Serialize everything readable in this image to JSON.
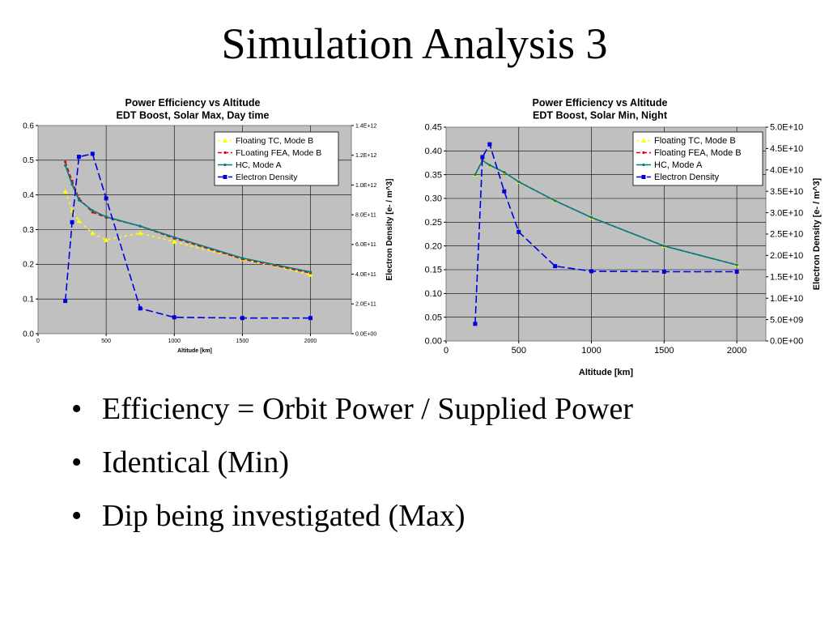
{
  "slide": {
    "title": "Simulation Analysis 3",
    "bullet_char": "•",
    "bullets": [
      "Efficiency = Orbit Power / Supplied Power",
      "Identical (Min)",
      "Dip being investigated (Max)"
    ]
  },
  "chart_data": [
    {
      "type": "line",
      "title": "Power Efficiency vs Altitude",
      "subtitle": "EDT Boost, Solar Max, Day time",
      "xlabel": "Altitude [km]",
      "ylabel": "",
      "y2label": "Electron Density [e- / m^3]",
      "xlim": [
        0,
        2300
      ],
      "ylim": [
        0,
        0.6
      ],
      "y2lim": [
        0,
        1400000000000.0
      ],
      "xticks": [
        0,
        500,
        1000,
        1500,
        2000
      ],
      "xtick_labels": [
        "0",
        "500",
        "1000",
        "1500",
        "2000"
      ],
      "yticks": [
        0,
        0.1,
        0.2,
        0.3,
        0.4,
        0.5,
        0.6
      ],
      "ytick_labels": [
        "0.0",
        "0.1",
        "0.2",
        "0.3",
        "0.4",
        "0.5",
        "0.6"
      ],
      "y2ticks": [
        0,
        200000000000.0,
        400000000000.0,
        600000000000.0,
        800000000000.0,
        1000000000000.0,
        1200000000000.0,
        1400000000000.0
      ],
      "y2tick_labels": [
        "0.0E+00",
        "2.0E+11",
        "4.0E+11",
        "6.0E+11",
        "8.0E+11",
        "1.0E+12",
        "1.2E+12",
        "1.4E+12"
      ],
      "grid": true,
      "legend": "top-right",
      "series": [
        {
          "name": "Floating TC, Mode B",
          "axis": "left",
          "color": "#ffff00",
          "dash": "3,4",
          "marker": "triangle",
          "x": [
            200,
            250,
            300,
            400,
            500,
            750,
            1000,
            1500,
            2000
          ],
          "y": [
            0.41,
            0.355,
            0.325,
            0.29,
            0.27,
            0.29,
            0.265,
            0.215,
            0.17
          ]
        },
        {
          "name": "FLoating FEA, Mode B",
          "axis": "left",
          "color": "#dd0000",
          "dash": "5,3",
          "marker": "dot",
          "x": [
            200,
            250,
            300,
            400,
            500,
            750,
            1000,
            1500,
            2000
          ],
          "y": [
            0.495,
            0.44,
            0.39,
            0.35,
            0.335,
            0.31,
            0.275,
            0.215,
            0.175
          ]
        },
        {
          "name": "HC, Mode A",
          "axis": "left",
          "color": "#008080",
          "dash": "",
          "marker": "dot",
          "x": [
            200,
            250,
            300,
            400,
            500,
            750,
            1000,
            1500,
            2000
          ],
          "y": [
            0.485,
            0.43,
            0.385,
            0.355,
            0.337,
            0.31,
            0.278,
            0.218,
            0.178
          ]
        },
        {
          "name": "Electron Density",
          "axis": "right",
          "color": "#0000dd",
          "dash": "9,4",
          "marker": "square",
          "x": [
            200,
            250,
            300,
            400,
            500,
            750,
            1000,
            1500,
            2000
          ],
          "y": [
            220000000000.0,
            750000000000.0,
            1190000000000.0,
            1210000000000.0,
            910000000000.0,
            170000000000.0,
            110000000000.0,
            105000000000.0,
            105000000000.0
          ]
        }
      ]
    },
    {
      "type": "line",
      "title": "Power Efficiency vs Altitude",
      "subtitle": "EDT Boost, Solar Min, Night",
      "xlabel": "Altitude [km]",
      "ylabel": "",
      "y2label": "Electron Density [e- / m^3]",
      "xlim": [
        0,
        2200
      ],
      "ylim": [
        0,
        0.45
      ],
      "y2lim": [
        0,
        50000000000.0
      ],
      "xticks": [
        0,
        500,
        1000,
        1500,
        2000
      ],
      "xtick_labels": [
        "0",
        "500",
        "1000",
        "1500",
        "2000"
      ],
      "yticks": [
        0,
        0.05,
        0.1,
        0.15,
        0.2,
        0.25,
        0.3,
        0.35,
        0.4,
        0.45
      ],
      "ytick_labels": [
        "0.00",
        "0.05",
        "0.10",
        "0.15",
        "0.20",
        "0.25",
        "0.30",
        "0.35",
        "0.40",
        "0.45"
      ],
      "y2ticks": [
        0,
        5000000000.0,
        10000000000.0,
        15000000000.0,
        20000000000.0,
        25000000000.0,
        30000000000.0,
        35000000000.0,
        40000000000.0,
        45000000000.0,
        50000000000.0
      ],
      "y2tick_labels": [
        "0.0E+00",
        "5.0E+09",
        "1.0E+10",
        "1.5E+10",
        "2.0E+10",
        "2.5E+10",
        "3.0E+10",
        "3.5E+10",
        "4.0E+10",
        "4.5E+10",
        "5.0E+10"
      ],
      "grid": true,
      "legend": "top-right",
      "series": [
        {
          "name": "Floating TC, Mode B",
          "axis": "left",
          "color": "#ffff00",
          "dash": "3,4",
          "marker": "triangle",
          "x": [
            200,
            250,
            300,
            400,
            500,
            750,
            1000,
            1500,
            2000
          ],
          "y": [
            0.35,
            0.38,
            0.37,
            0.355,
            0.335,
            0.295,
            0.26,
            0.2,
            0.16
          ]
        },
        {
          "name": "Floating FEA, Mode B",
          "axis": "left",
          "color": "#dd0000",
          "dash": "5,3",
          "marker": "dot",
          "x": [
            200,
            250,
            300,
            400,
            500,
            750,
            1000,
            1500,
            2000
          ],
          "y": [
            0.35,
            0.38,
            0.37,
            0.355,
            0.335,
            0.295,
            0.26,
            0.2,
            0.16
          ]
        },
        {
          "name": "HC, Mode A",
          "axis": "left",
          "color": "#008080",
          "dash": "",
          "marker": "dot",
          "x": [
            200,
            250,
            300,
            400,
            500,
            750,
            1000,
            1500,
            2000
          ],
          "y": [
            0.35,
            0.38,
            0.37,
            0.355,
            0.335,
            0.295,
            0.26,
            0.2,
            0.16
          ]
        },
        {
          "name": "Electron Density",
          "axis": "right",
          "color": "#0000dd",
          "dash": "9,4",
          "marker": "square",
          "x": [
            200,
            250,
            300,
            400,
            500,
            750,
            1000,
            1500,
            2000
          ],
          "y": [
            4000000000.0,
            43000000000.0,
            46000000000.0,
            35000000000.0,
            25500000000.0,
            17500000000.0,
            16300000000.0,
            16200000000.0,
            16200000000.0
          ]
        }
      ]
    }
  ]
}
